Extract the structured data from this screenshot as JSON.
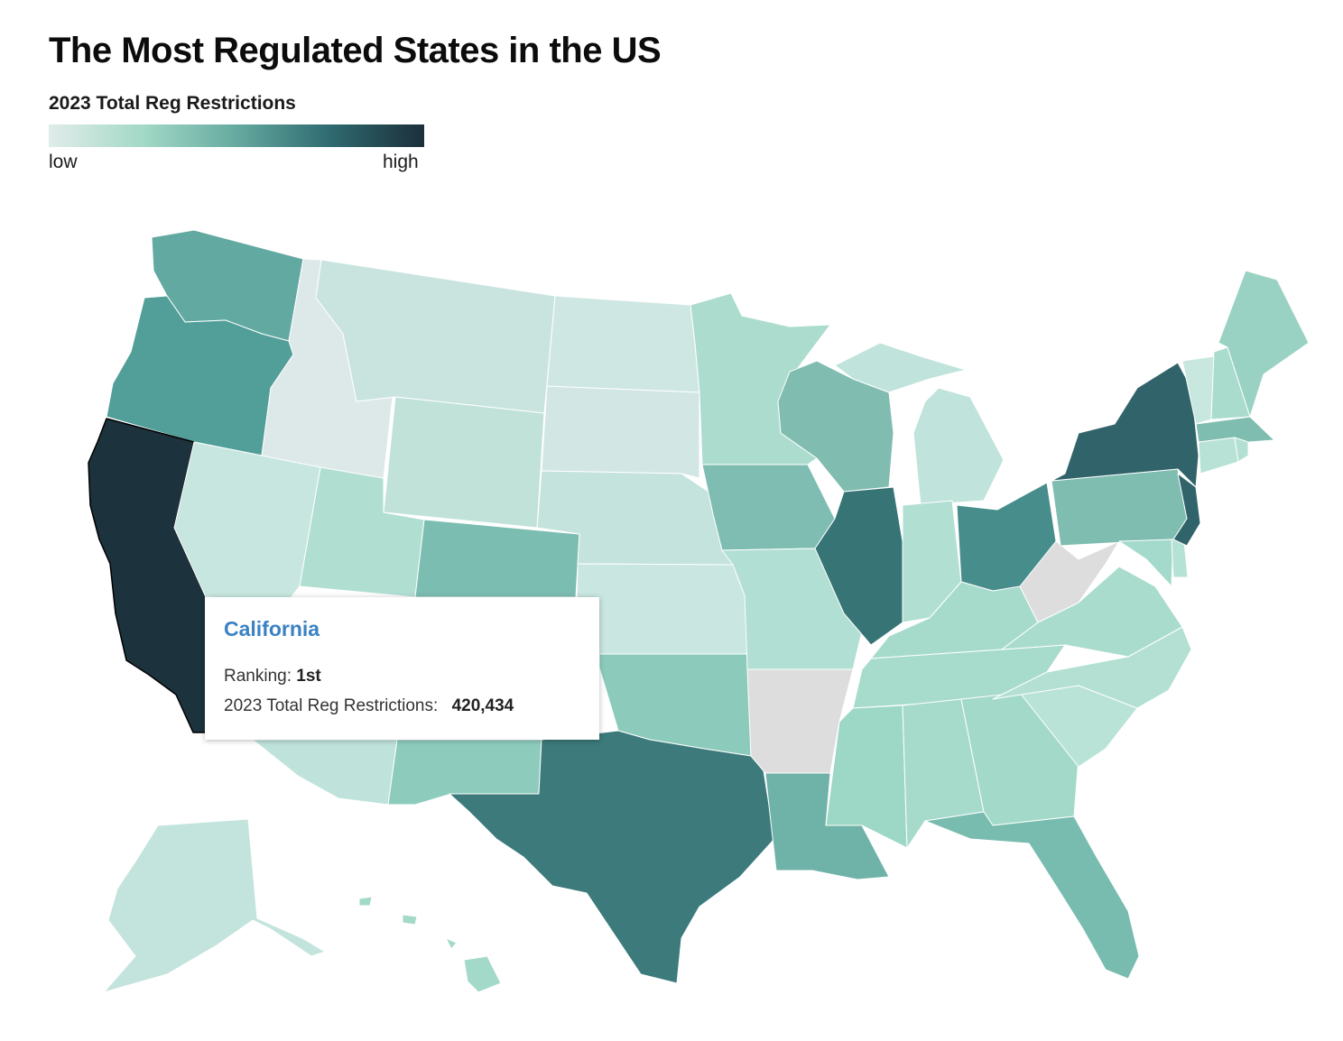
{
  "title": "The Most Regulated States in the US",
  "legend": {
    "title": "2023 Total Reg Restrictions",
    "low_label": "low",
    "high_label": "high",
    "color_stops": [
      "#e1ecea",
      "#a3d9c6",
      "#65aaa0",
      "#2e6a70",
      "#1c2f3a"
    ]
  },
  "map": {
    "type": "choropleth",
    "region": "United States",
    "metric": "2023 Total Reg Restrictions",
    "no_data_color": "#dddddd",
    "highlighted_state": "California",
    "state_fill_colors": {
      "California": "#1c323c",
      "Oregon": "#529f9a",
      "Washington": "#62a9a2",
      "Idaho": "#dde9e8",
      "Montana": "#c9e4df",
      "Wyoming": "#c0e2d9",
      "Nevada": "#c7e6df",
      "Utah": "#b0dfd2",
      "Arizona": "#bfe3da",
      "Colorado": "#7cbdb1",
      "New Mexico": "#8dccbd",
      "North Dakota": "#cfe7e3",
      "South Dakota": "#d2e7e4",
      "Nebraska": "#c4e3dc",
      "Kansas": "#c9e6e0",
      "Oklahoma": "#8ccbbc",
      "Texas": "#3c7a7b",
      "Minnesota": "#abdccd",
      "Iowa": "#7fbdb2",
      "Missouri": "#b2dfd3",
      "Arkansas": "#dddddd",
      "Louisiana": "#6fb2a8",
      "Wisconsin": "#80bcb0",
      "Illinois": "#367476",
      "Michigan": "#c0e4db",
      "Indiana": "#b1e0d3",
      "Ohio": "#478d8b",
      "Kentucky": "#a6dbcc",
      "Tennessee": "#a7dbcb",
      "Mississippi": "#9dd7c5",
      "Alabama": "#a6dbcb",
      "Georgia": "#a3d9c9",
      "Florida": "#78bbaf",
      "South Carolina": "#b9e3d7",
      "North Carolina": "#b3e0d3",
      "Virginia": "#a9dccd",
      "West Virginia": "#dddddd",
      "Pennsylvania": "#7fbdb1",
      "New York": "#30646a",
      "New Jersey": "#30646a",
      "Delaware": "#b6e1d5",
      "Maryland": "#a4dacb",
      "Connecticut": "#b9e2d7",
      "Rhode Island": "#b3e0d3",
      "Massachusetts": "#7fbdb1",
      "Vermont": "#c8e7df",
      "New Hampshire": "#a9dccd",
      "Maine": "#99d2c3",
      "Alaska": "#c3e4dc",
      "Hawaii": "#a3d9c9"
    }
  },
  "tooltip": {
    "state": "California",
    "ranking_label": "Ranking:",
    "ranking_value": "1st",
    "metric_label": "2023 Total Reg Restrictions:",
    "metric_value": "420,434"
  }
}
